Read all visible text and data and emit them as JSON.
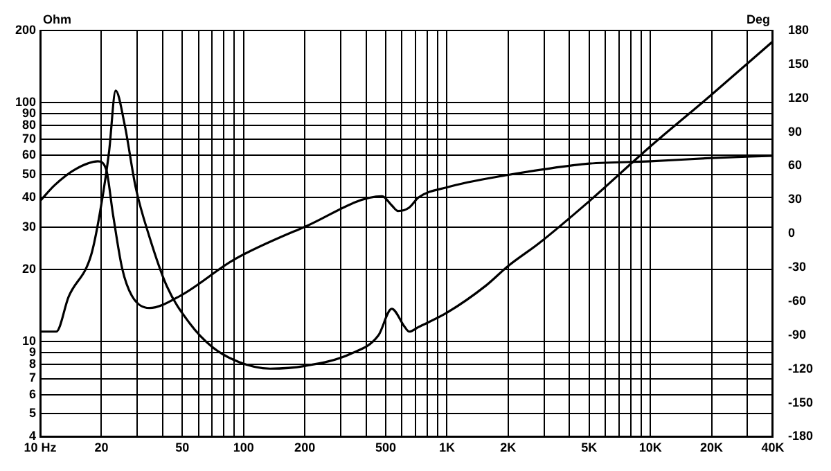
{
  "chart_data": {
    "type": "line",
    "ylabel": "Ohm",
    "y2label": "Deg",
    "log": "xy",
    "grid": true,
    "marker": "none",
    "line_style": "solid",
    "xlim": [
      10,
      40000
    ],
    "xticks": [
      {
        "value": 10,
        "label": "10 Hz"
      },
      20,
      {
        "value": 30,
        "label": null
      },
      {
        "value": 40,
        "label": null
      },
      50,
      {
        "value": 60,
        "label": null
      },
      {
        "value": 70,
        "label": null
      },
      {
        "value": 80,
        "label": null
      },
      {
        "value": 90,
        "label": null
      },
      100,
      200,
      {
        "value": 300,
        "label": null
      },
      {
        "value": 400,
        "label": null
      },
      500,
      {
        "value": 600,
        "label": null
      },
      {
        "value": 700,
        "label": null
      },
      {
        "value": 800,
        "label": null
      },
      {
        "value": 900,
        "label": null
      },
      {
        "value": 1000,
        "label": "1K"
      },
      {
        "value": 2000,
        "label": "2K"
      },
      {
        "value": 3000,
        "label": null
      },
      {
        "value": 4000,
        "label": null
      },
      {
        "value": 5000,
        "label": "5K"
      },
      {
        "value": 6000,
        "label": null
      },
      {
        "value": 7000,
        "label": null
      },
      {
        "value": 8000,
        "label": null
      },
      {
        "value": 9000,
        "label": null
      },
      {
        "value": 10000,
        "label": "10K"
      },
      {
        "value": 20000,
        "label": "20K"
      },
      {
        "value": 30000,
        "label": null
      },
      {
        "value": 40000,
        "label": "40K"
      }
    ],
    "ylim": [
      4,
      200
    ],
    "yticks": [
      4,
      5,
      6,
      7,
      8,
      9,
      10,
      20,
      30,
      40,
      50,
      60,
      70,
      80,
      90,
      100,
      200
    ],
    "y2lim": [
      -180,
      180
    ],
    "y2ticks": [
      -180,
      -150,
      -120,
      -90,
      -60,
      -30,
      0,
      30,
      60,
      90,
      120,
      150,
      180
    ],
    "series": [
      {
        "color": "#000000",
        "x": [
          10,
          12,
          13.8,
          17.8,
          19.6,
          21.8,
          23.5,
          26,
          29.5,
          34.4,
          42,
          54,
          70,
          95,
          135,
          200,
          338,
          460,
          535,
          620,
          652,
          725,
          1000,
          1550,
          2000,
          2840,
          5000,
          9900,
          19800,
          40000
        ],
        "values": [
          11,
          11,
          15.4,
          23,
          34,
          62,
          112,
          81,
          44,
          27.5,
          17,
          12,
          9.5,
          8.2,
          7.7,
          7.9,
          8.9,
          10.6,
          13.7,
          11.5,
          11,
          11.5,
          13.2,
          17.1,
          20.7,
          25.8,
          38.6,
          65,
          107,
          180
        ]
      },
      {
        "color": "#000000",
        "axis": "y2",
        "x": [
          10,
          11.8,
          14.9,
          19.2,
          21.1,
          22.8,
          25.3,
          28.2,
          34.4,
          49,
          90,
          200,
          480,
          535,
          575,
          652,
          725,
          1000,
          2000,
          3000,
          5000,
          10000,
          20000,
          40000
        ],
        "values": [
          29,
          43,
          57,
          64,
          57,
          17,
          -31,
          -55,
          -66,
          -55,
          -23,
          6,
          33,
          25,
          20,
          23,
          32,
          41,
          52,
          57,
          62,
          64,
          67,
          69
        ]
      }
    ]
  }
}
